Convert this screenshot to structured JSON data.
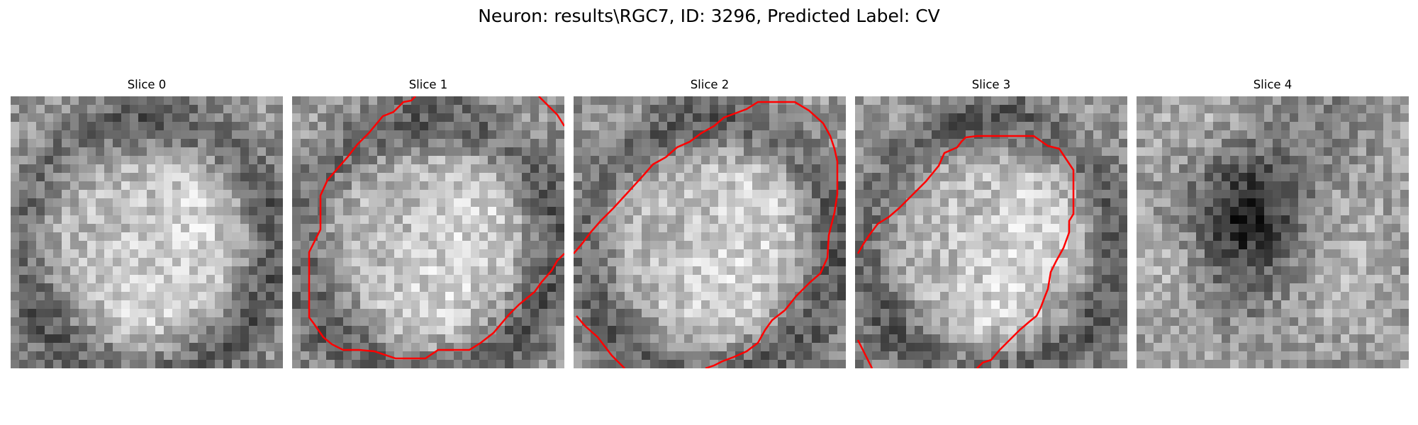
{
  "figure": {
    "suptitle": "Neuron: results\\RGC7, ID: 3296, Predicted Label: CV",
    "contour_color": "#ff0000",
    "colormap": "grayscale"
  },
  "panels": [
    {
      "title": "Slice 0",
      "seed": 11,
      "base": "center-bright",
      "has_contour": false
    },
    {
      "title": "Slice 1",
      "seed": 23,
      "base": "center-bright",
      "has_contour": true
    },
    {
      "title": "Slice 2",
      "seed": 37,
      "base": "center-bright",
      "has_contour": true
    },
    {
      "title": "Slice 3",
      "seed": 41,
      "base": "center-bright",
      "has_contour": true
    },
    {
      "title": "Slice 4",
      "seed": 53,
      "base": "center-dark",
      "has_contour": false
    }
  ]
}
